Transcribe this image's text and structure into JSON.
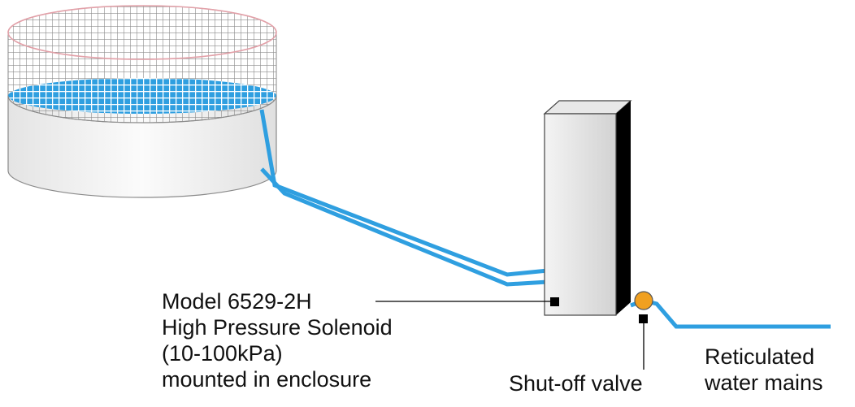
{
  "solenoid_label": {
    "line1": "Model 6529-2H",
    "line2": "High Pressure Solenoid",
    "line3": "(10-100kPa)",
    "line4": "mounted in enclosure"
  },
  "valve_label": "Shut-off valve",
  "mains_label": {
    "line1": "Reticulated",
    "line2": "water mains"
  },
  "colors": {
    "water": "#2f9fe0",
    "mesh": "#8a8a8a",
    "mesh_rim": "#e2a0a8",
    "tank_body": "#f2f2f2",
    "enclosure_front": "#e6e6e6",
    "enclosure_side": "#000000",
    "valve": "#f0a020"
  }
}
